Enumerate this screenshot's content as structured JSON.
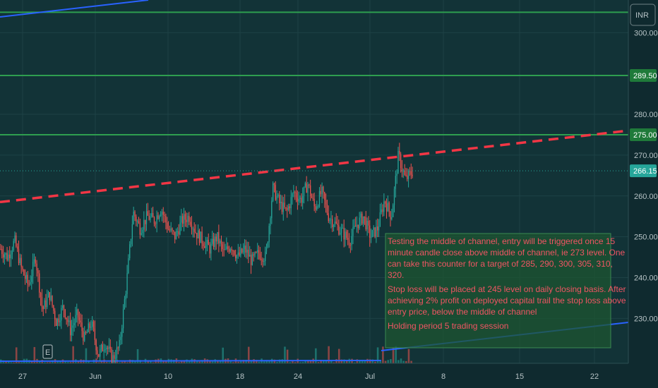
{
  "colors": {
    "background": "#0f2a2f",
    "panel": "#123337",
    "grid": "#1d4246",
    "up": "#26a69a",
    "down": "#ef5350",
    "level_line": "#2e9e4f",
    "channel_line": "#2962ff",
    "dashed_line": "#f23645",
    "note_bg": "#1e5532",
    "note_text": "#f05563"
  },
  "header": {
    "currency_button": "INR"
  },
  "chart_data": {
    "type": "candlestick",
    "y_axis": {
      "side": "right",
      "ylim": [
        219,
        308
      ],
      "ticks": [
        300,
        280,
        270,
        260,
        250,
        240,
        230
      ]
    },
    "x_axis": {
      "tick_labels": [
        "27",
        "Jun",
        "10",
        "18",
        "24",
        "Jul",
        "8",
        "15",
        "22"
      ]
    },
    "price_tags": [
      {
        "value": 289.5,
        "label": "289.50"
      },
      {
        "value": 275.0,
        "label": "275.00"
      },
      {
        "value": 266.15,
        "label": "266.15"
      }
    ],
    "horizontal_levels": [
      305.0,
      289.5,
      275.0
    ],
    "dashed_resistance": {
      "from": 258.5,
      "to": 276.0
    },
    "current_price": 266.15,
    "series_path": [
      247,
      245,
      249,
      242,
      238,
      245,
      232,
      236,
      229,
      233,
      227,
      231,
      225,
      229,
      221,
      224,
      220,
      223,
      238,
      256,
      252,
      255,
      254,
      257,
      252,
      250,
      254,
      255,
      251,
      249,
      247,
      250,
      246,
      248,
      245,
      247,
      244,
      246,
      245,
      262,
      258,
      256,
      261,
      259,
      263,
      257,
      261,
      255,
      253,
      251,
      249,
      253,
      255,
      250,
      252,
      259,
      255,
      270,
      264,
      266
    ]
  },
  "annotation": {
    "lines": [
      "Testing the middle of channel, entry will be triggered once 15",
      "minute candle close above middle of channel, ie 273 level. One",
      "can take this counter for a target of 285, 290, 300, 305, 310,",
      "320.",
      "Stop loss will be placed at 245 level on daily closing basis. After",
      "achieving 2% profit on deployed capital trail the stop loss above",
      "entry price, below the middle of channel",
      "Holding period 5 trading session"
    ]
  },
  "event_marker": {
    "label": "E"
  }
}
